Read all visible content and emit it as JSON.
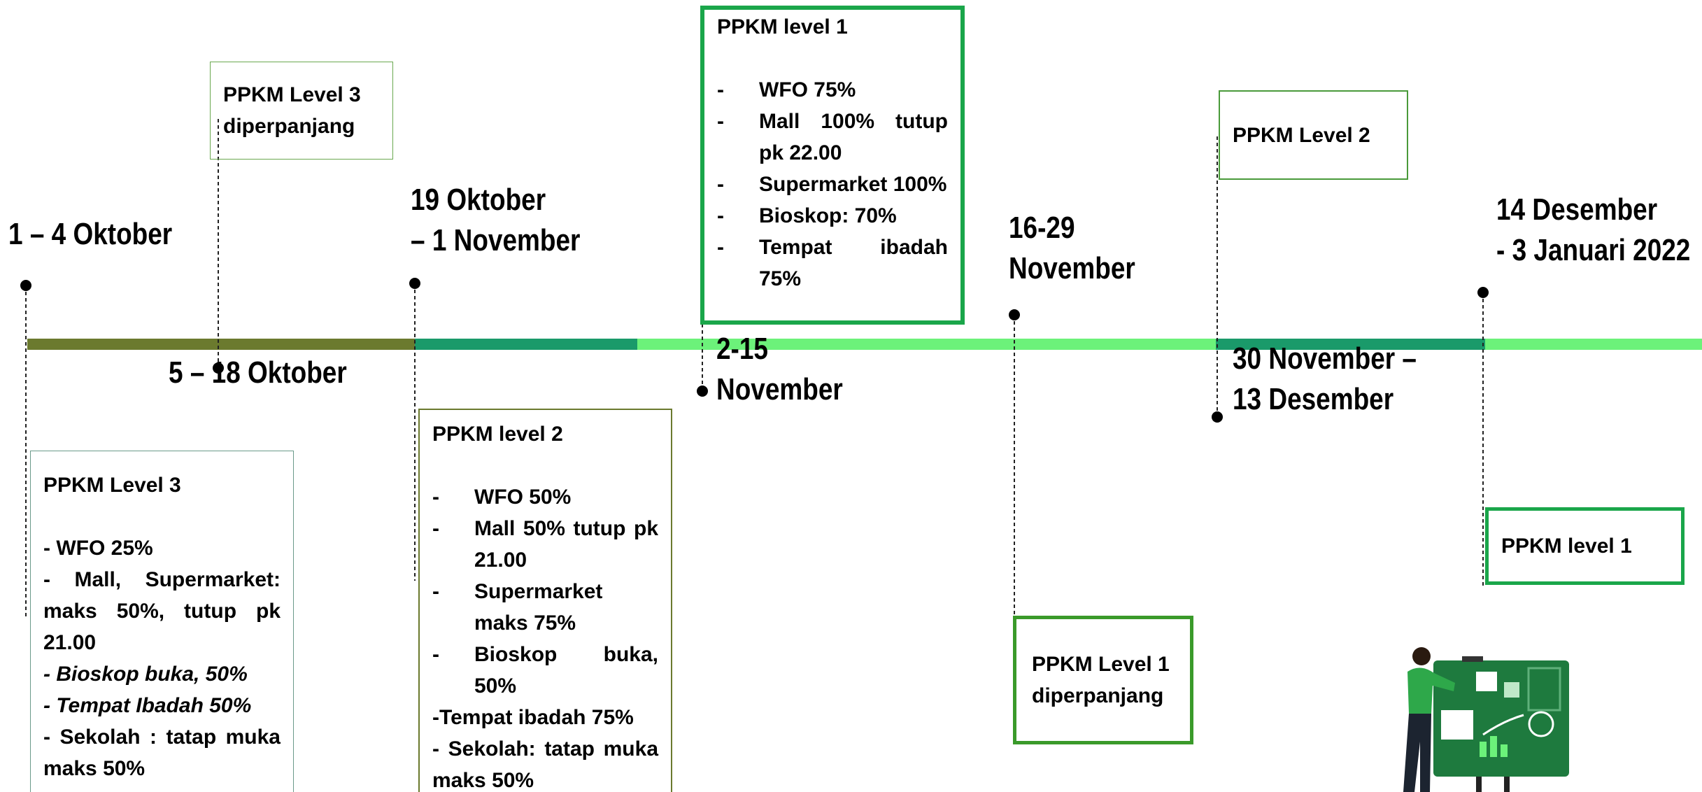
{
  "events": [
    {
      "date": [
        "1 – 4 Oktober"
      ],
      "box": {
        "title": "PPKM Level 3",
        "items": [
          {
            "text": "- WFO 25%"
          },
          {
            "text": "- Mall, Supermarket: maks 50%, tutup pk 21.00"
          },
          {
            "text": "- Bioskop buka, 50%",
            "italic": true
          },
          {
            "text": "- Tempat Ibadah 50%",
            "italic": true
          },
          {
            "text": "- Sekolah : tatap muka maks 50%"
          }
        ]
      }
    },
    {
      "date": [
        "5 – 18 Oktober"
      ],
      "box": {
        "title": "PPKM Level 3 diperpanjang"
      }
    },
    {
      "date": [
        "19 Oktober",
        "– 1 November"
      ],
      "box": {
        "title": "PPKM level 2",
        "items": [
          {
            "bullet": "-",
            "text": "WFO 50%"
          },
          {
            "bullet": "-",
            "text": "Mall 50% tutup pk 21.00"
          },
          {
            "bullet": "-",
            "text": "Supermarket maks 75%"
          },
          {
            "bullet": "-",
            "text": "Bioskop buka, 50%"
          },
          {
            "text": "-Tempat ibadah 75%"
          },
          {
            "text": "- Sekolah: tatap muka maks 50%"
          }
        ]
      }
    },
    {
      "date": [
        "2-15",
        "November"
      ],
      "box": {
        "title": "PPKM level 1",
        "items": [
          {
            "bullet": "-",
            "text": "WFO 75%"
          },
          {
            "bullet": "-",
            "text": "Mall 100% tutup pk 22.00"
          },
          {
            "bullet": "-",
            "text": "Supermarket 100%"
          },
          {
            "bullet": "-",
            "text": "Bioskop: 70%"
          },
          {
            "bullet": "-",
            "text": "Tempat ibadah 75%"
          }
        ]
      }
    },
    {
      "date": [
        "16-29",
        "November"
      ],
      "box": {
        "title": "PPKM Level 1 diperpanjang"
      }
    },
    {
      "date": [
        "30 November –",
        "13 Desember"
      ],
      "box": {
        "title": "PPKM Level 2"
      }
    },
    {
      "date": [
        "14 Desember",
        "- 3 Januari 2022"
      ],
      "box": {
        "title": "PPKM level 1"
      }
    }
  ]
}
